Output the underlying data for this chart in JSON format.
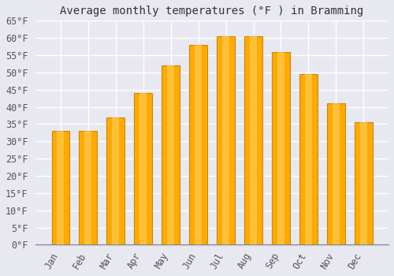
{
  "title": "Average monthly temperatures (°F ) in Bramming",
  "months": [
    "Jan",
    "Feb",
    "Mar",
    "Apr",
    "May",
    "Jun",
    "Jul",
    "Aug",
    "Sep",
    "Oct",
    "Nov",
    "Dec"
  ],
  "values": [
    33,
    33,
    37,
    44,
    52,
    58,
    60.5,
    60.5,
    56,
    49.5,
    41,
    35.5
  ],
  "bar_color_face": "#FFAA00",
  "bar_color_edge": "#CC8800",
  "bar_color_light": "#FFD060",
  "background_color": "#E8E8F0",
  "plot_bg_color": "#E8E8F0",
  "grid_color": "#FFFFFF",
  "ylim": [
    0,
    65
  ],
  "yticks": [
    0,
    5,
    10,
    15,
    20,
    25,
    30,
    35,
    40,
    45,
    50,
    55,
    60,
    65
  ],
  "title_fontsize": 10,
  "tick_fontsize": 8.5
}
